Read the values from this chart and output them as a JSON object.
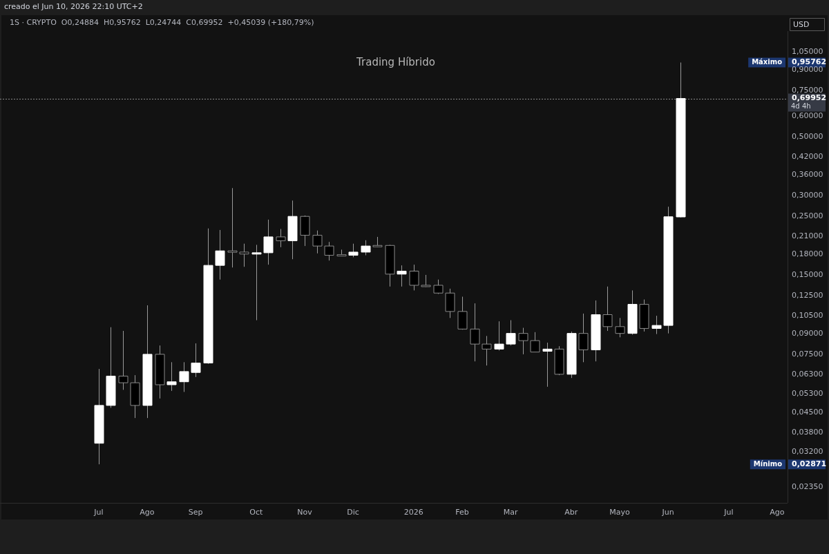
{
  "chart_data": {
    "type": "candlestick",
    "title": "1S · CRYPTO  O0,24884  H0,95762  L0,24744  C0,69952  +0,45039 (+180,79%)",
    "subtitle": "Trading Híbrido",
    "ylabel": "USD",
    "annotations": [
      "creado el Jun 10, 2026 22:10 UTC+2",
      "Máximo",
      "Mínimo"
    ],
    "x": [
      "2025-07-07",
      "2025-07-14",
      "2025-07-21",
      "2025-07-28",
      "2025-08-04",
      "2025-08-11",
      "2025-08-18",
      "2025-08-25",
      "2025-09-01",
      "2025-09-08",
      "2025-09-15",
      "2025-09-22",
      "2025-09-29",
      "2025-10-06",
      "2025-10-13",
      "2025-10-20",
      "2025-10-27",
      "2025-11-03",
      "2025-11-10",
      "2025-11-17",
      "2025-11-24",
      "2025-12-01",
      "2025-12-08",
      "2025-12-15",
      "2025-12-22",
      "2025-12-29",
      "2026-01-05",
      "2026-01-12",
      "2026-01-19",
      "2026-01-26",
      "2026-02-02",
      "2026-02-09",
      "2026-02-16",
      "2026-02-23",
      "2026-03-02",
      "2026-03-09",
      "2026-03-16",
      "2026-03-23",
      "2026-03-30",
      "2026-04-06",
      "2026-04-13",
      "2026-04-20",
      "2026-04-27",
      "2026-05-04",
      "2026-05-11",
      "2026-05-18",
      "2026-05-25",
      "2026-06-01",
      "2026-06-08"
    ],
    "ohlc": [
      [
        0.0345,
        0.066,
        0.02871,
        0.048
      ],
      [
        0.048,
        0.095,
        0.047,
        0.062
      ],
      [
        0.062,
        0.092,
        0.055,
        0.0585
      ],
      [
        0.0585,
        0.0625,
        0.043,
        0.048
      ],
      [
        0.048,
        0.115,
        0.043,
        0.075
      ],
      [
        0.075,
        0.081,
        0.051,
        0.0575
      ],
      [
        0.0575,
        0.07,
        0.0545,
        0.059
      ],
      [
        0.059,
        0.07,
        0.054,
        0.0645
      ],
      [
        0.064,
        0.0825,
        0.0615,
        0.0695
      ],
      [
        0.0695,
        0.225,
        0.069,
        0.163
      ],
      [
        0.163,
        0.222,
        0.144,
        0.185
      ],
      [
        0.185,
        0.32,
        0.16,
        0.183
      ],
      [
        0.183,
        0.197,
        0.161,
        0.18
      ],
      [
        0.18,
        0.195,
        0.101,
        0.182
      ],
      [
        0.182,
        0.243,
        0.164,
        0.209
      ],
      [
        0.209,
        0.224,
        0.191,
        0.202
      ],
      [
        0.202,
        0.287,
        0.172,
        0.25
      ],
      [
        0.25,
        0.252,
        0.193,
        0.212
      ],
      [
        0.212,
        0.221,
        0.181,
        0.193
      ],
      [
        0.193,
        0.2,
        0.17,
        0.178
      ],
      [
        0.179,
        0.187,
        0.177,
        0.178
      ],
      [
        0.178,
        0.197,
        0.175,
        0.183
      ],
      [
        0.183,
        0.203,
        0.178,
        0.193
      ],
      [
        0.194,
        0.209,
        0.191,
        0.193
      ],
      [
        0.194,
        0.195,
        0.1355,
        0.151
      ],
      [
        0.151,
        0.163,
        0.1355,
        0.155
      ],
      [
        0.155,
        0.164,
        0.131,
        0.137
      ],
      [
        0.137,
        0.15,
        0.135,
        0.136
      ],
      [
        0.137,
        0.144,
        0.127,
        0.128
      ],
      [
        0.128,
        0.133,
        0.103,
        0.109
      ],
      [
        0.109,
        0.124,
        0.093,
        0.0935
      ],
      [
        0.0935,
        0.117,
        0.0705,
        0.082
      ],
      [
        0.082,
        0.088,
        0.068,
        0.0785
      ],
      [
        0.0785,
        0.1,
        0.0775,
        0.082
      ],
      [
        0.082,
        0.101,
        0.081,
        0.09
      ],
      [
        0.09,
        0.0945,
        0.075,
        0.0845
      ],
      [
        0.0845,
        0.091,
        0.0765,
        0.0765
      ],
      [
        0.077,
        0.083,
        0.0565,
        0.0785
      ],
      [
        0.0785,
        0.0805,
        0.0625,
        0.063
      ],
      [
        0.063,
        0.0915,
        0.061,
        0.09
      ],
      [
        0.09,
        0.107,
        0.07,
        0.078
      ],
      [
        0.078,
        0.12,
        0.0705,
        0.106
      ],
      [
        0.106,
        0.1355,
        0.092,
        0.0955
      ],
      [
        0.0955,
        0.103,
        0.087,
        0.09
      ],
      [
        0.09,
        0.131,
        0.089,
        0.116
      ],
      [
        0.116,
        0.121,
        0.0915,
        0.094
      ],
      [
        0.094,
        0.105,
        0.0895,
        0.0965
      ],
      [
        0.0965,
        0.272,
        0.09,
        0.24913
      ],
      [
        0.24884,
        0.95762,
        0.24744,
        0.69952
      ]
    ],
    "colors": [
      "#ffffff",
      "#ffffff",
      "#000000",
      "#000000",
      "#ffffff",
      "#000000",
      "#ffffff",
      "#ffffff",
      "#ffffff",
      "#ffffff",
      "#ffffff",
      "#000000",
      "#000000",
      "#ffffff",
      "#ffffff",
      "#000000",
      "#ffffff",
      "#000000",
      "#000000",
      "#000000",
      "#000000",
      "#ffffff",
      "#ffffff",
      "#000000",
      "#000000",
      "#ffffff",
      "#000000",
      "#000000",
      "#000000",
      "#000000",
      "#000000",
      "#000000",
      "#000000",
      "#ffffff",
      "#ffffff",
      "#000000",
      "#000000",
      "#ffffff",
      "#000000",
      "#ffffff",
      "#000000",
      "#ffffff",
      "#000000",
      "#000000",
      "#ffffff",
      "#000000",
      "#ffffff",
      "#ffffff",
      "#ffffff"
    ],
    "log": true,
    "xlim": [
      "2025-05-11",
      "2026-08-09"
    ],
    "xticks": [
      {
        "value": "2025-07-07",
        "label": "Jul"
      },
      {
        "value": "2025-08-04",
        "label": "Ago"
      },
      {
        "value": "2025-09-01",
        "label": "Sep"
      },
      {
        "value": "2025-10-06",
        "label": "Oct"
      },
      {
        "value": "2025-11-03",
        "label": "Nov"
      },
      {
        "value": "2025-12-01",
        "label": "Dic"
      },
      {
        "value": "2026-01-05",
        "label": "2026"
      },
      {
        "value": "2026-02-02",
        "label": "Feb"
      },
      {
        "value": "2026-03-02",
        "label": "Mar"
      },
      {
        "value": "2026-04-06",
        "label": "Abr"
      },
      {
        "value": "2026-05-04",
        "label": "Mayo"
      },
      {
        "value": "2026-06-01",
        "label": "Jun"
      },
      {
        "value": "2026-07-06",
        "label": "Jul"
      },
      {
        "value": "2026-08-03",
        "label": "Ago"
      }
    ],
    "ylim": [
      0.0205,
      1.26
    ],
    "yticks": [
      {
        "value": 1.05,
        "label": "1,05000"
      },
      {
        "value": 0.95762,
        "label": "0,95762"
      },
      {
        "value": 0.9,
        "label": "0,90000"
      },
      {
        "value": 0.75,
        "label": "0,75000"
      },
      {
        "value": 0.69952,
        "label": "0,69952"
      },
      {
        "value": 0.6,
        "label": "0,60000"
      },
      {
        "value": 0.5,
        "label": "0,50000"
      },
      {
        "value": 0.42,
        "label": "0,42000"
      },
      {
        "value": 0.36,
        "label": "0,36000"
      },
      {
        "value": 0.3,
        "label": "0,30000"
      },
      {
        "value": 0.25,
        "label": "0,25000"
      },
      {
        "value": 0.21,
        "label": "0,21000"
      },
      {
        "value": 0.18,
        "label": "0,18000"
      },
      {
        "value": 0.15,
        "label": "0,15000"
      },
      {
        "value": 0.125,
        "label": "0,12500"
      },
      {
        "value": 0.105,
        "label": "0,10500"
      },
      {
        "value": 0.09,
        "label": "0,09000"
      },
      {
        "value": 0.075,
        "label": "0,07500"
      },
      {
        "value": 0.063,
        "label": "0,06300"
      },
      {
        "value": 0.053,
        "label": "0,05300"
      },
      {
        "value": 0.045,
        "label": "0,04500"
      },
      {
        "value": 0.038,
        "label": "0,03800"
      },
      {
        "value": 0.032,
        "label": "0,03200"
      },
      {
        "value": 0.02871,
        "label": "0,02871"
      },
      {
        "value": 0.0235,
        "label": "0,02350"
      }
    ],
    "ref_lines": [
      {
        "axis": "y",
        "value": 0.69952,
        "label": "4d 4h",
        "color": "#8a8a8a",
        "line_style": "dotted"
      }
    ]
  }
}
